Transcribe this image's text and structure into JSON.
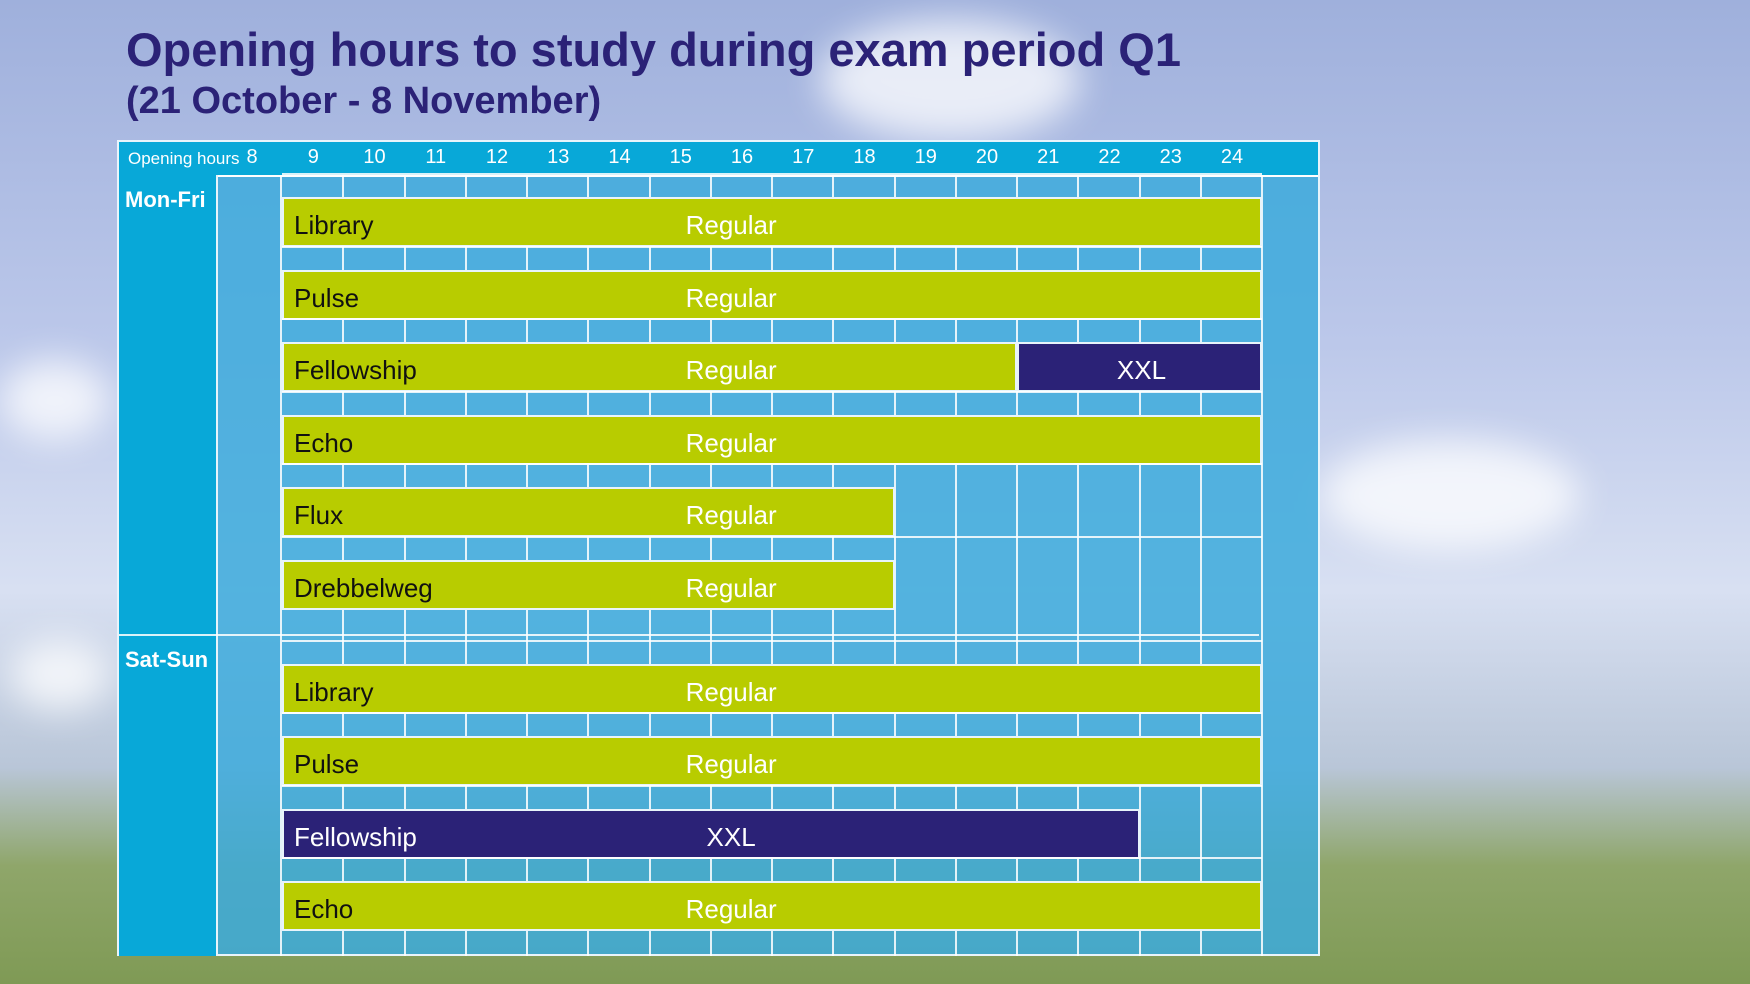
{
  "title": "Opening hours to study during exam period Q1",
  "subtitle": "(21 October - 8 November)",
  "colors": {
    "header": "#08a8d8",
    "regular": "#b8cc00",
    "xxl": "#2b2277",
    "grid": "#44b0dc",
    "title": "#2b2277"
  },
  "header_label": "Opening hours",
  "hours": [
    "8",
    "9",
    "10",
    "11",
    "12",
    "13",
    "14",
    "15",
    "16",
    "17",
    "18",
    "19",
    "20",
    "21",
    "22",
    "23",
    "24"
  ],
  "groups": [
    {
      "label": "Mon-Fri",
      "rows": [
        {
          "name": "Library",
          "segments": [
            {
              "type": "Regular",
              "start": 8,
              "end": 24
            }
          ]
        },
        {
          "name": "Pulse",
          "segments": [
            {
              "type": "Regular",
              "start": 8,
              "end": 24
            }
          ]
        },
        {
          "name": "Fellowship",
          "segments": [
            {
              "type": "Regular",
              "start": 8,
              "end": 20
            },
            {
              "type": "XXL",
              "start": 20,
              "end": 24
            }
          ]
        },
        {
          "name": "Echo",
          "segments": [
            {
              "type": "Regular",
              "start": 8,
              "end": 24
            }
          ]
        },
        {
          "name": "Flux",
          "segments": [
            {
              "type": "Regular",
              "start": 8,
              "end": 18
            }
          ]
        },
        {
          "name": "Drebbelweg",
          "segments": [
            {
              "type": "Regular",
              "start": 8,
              "end": 18
            }
          ]
        }
      ]
    },
    {
      "label": "Sat-Sun",
      "rows": [
        {
          "name": "Library",
          "segments": [
            {
              "type": "Regular",
              "start": 8,
              "end": 24
            }
          ]
        },
        {
          "name": "Pulse",
          "segments": [
            {
              "type": "Regular",
              "start": 8,
              "end": 24
            }
          ]
        },
        {
          "name": "Fellowship",
          "segments": [
            {
              "type": "XXL",
              "start": 8,
              "end": 22
            }
          ]
        },
        {
          "name": "Echo",
          "segments": [
            {
              "type": "Regular",
              "start": 8,
              "end": 24
            }
          ]
        }
      ]
    }
  ]
}
